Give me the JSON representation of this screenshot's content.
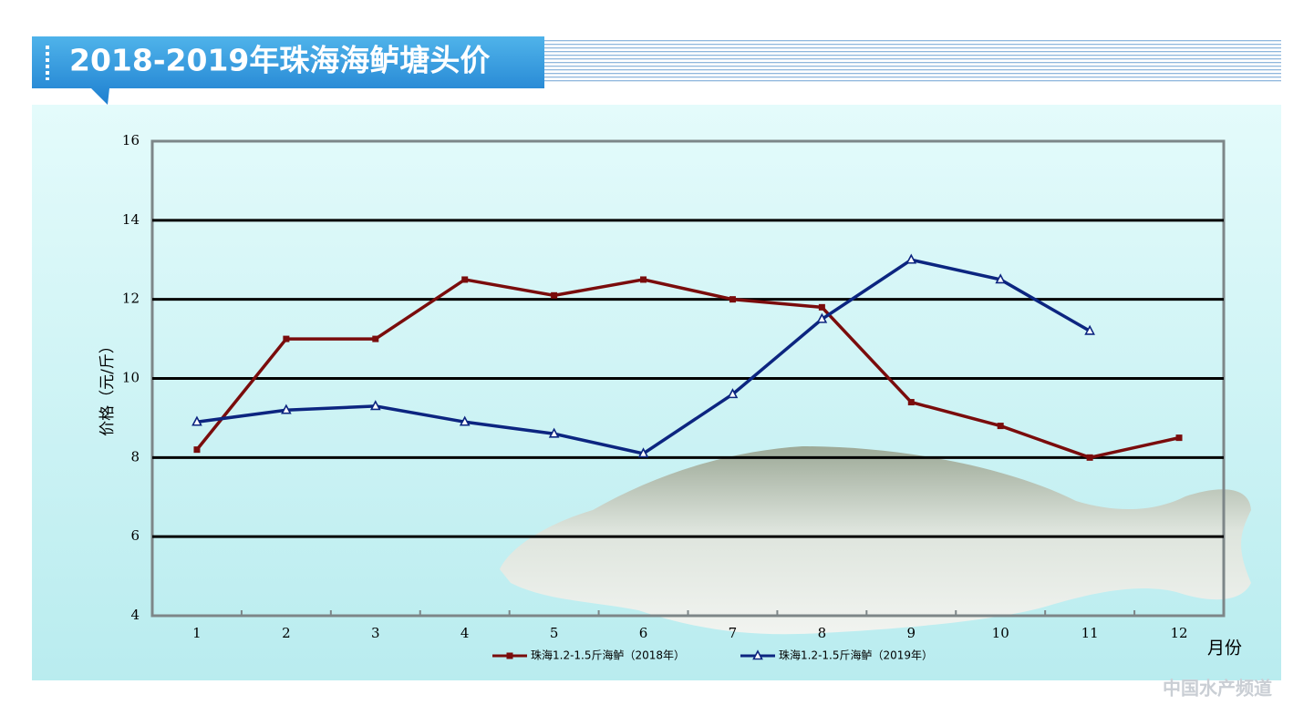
{
  "chart_data": {
    "type": "line",
    "title": "2018-2019年珠海海鲈塘头价",
    "y_label": "价格（元/斤）",
    "x_label": "月份",
    "watermark": "中国水产频道",
    "categories": [
      "1",
      "2",
      "3",
      "4",
      "5",
      "6",
      "7",
      "8",
      "9",
      "10",
      "11",
      "12"
    ],
    "series": [
      {
        "name": "珠海1.2-1.5斤海鲈（2018年）",
        "color": "#7a0c0c",
        "marker": "square",
        "values": [
          8.2,
          11,
          11,
          12.5,
          12.1,
          12.5,
          12,
          11.8,
          9.4,
          8.8,
          8.0,
          8.5
        ]
      },
      {
        "name": "珠海1.2-1.5斤海鲈（2019年）",
        "color": "#0c2580",
        "marker": "triangle",
        "values": [
          8.9,
          9.2,
          9.3,
          8.9,
          8.6,
          8.1,
          9.6,
          11.5,
          13.0,
          12.5,
          11.2,
          null
        ]
      }
    ],
    "ylim": [
      4,
      16
    ],
    "yticks": [
      4,
      6,
      8,
      10,
      12,
      14,
      16
    ],
    "grid": true
  }
}
